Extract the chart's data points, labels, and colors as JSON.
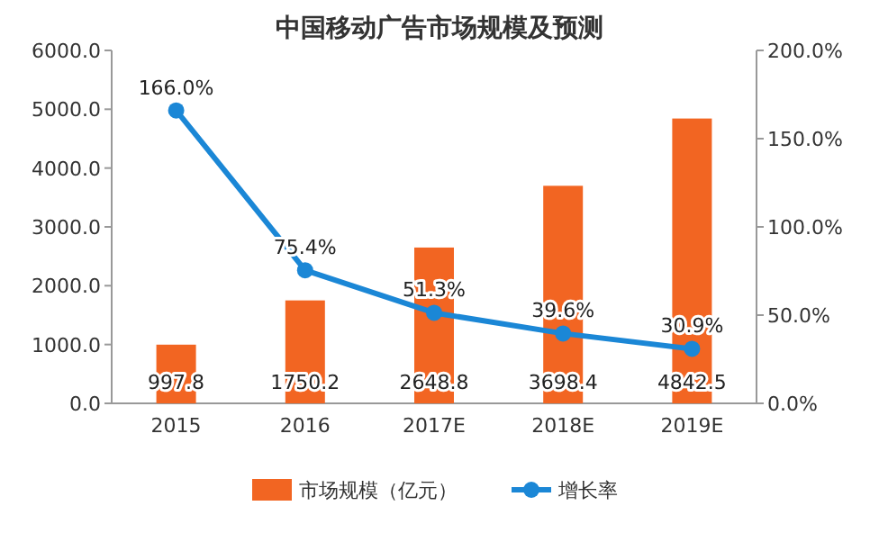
{
  "chart_data": {
    "type": "bar",
    "title": "中国移动广告市场规模及预测",
    "categories": [
      "2015",
      "2016",
      "2017E",
      "2018E",
      "2019E"
    ],
    "series": [
      {
        "name": "市场规模（亿元）",
        "color": "#f26522",
        "values": [
          997.8,
          1750.2,
          2648.8,
          3698.4,
          4842.5
        ],
        "value_labels": [
          "997.8",
          "1750.2",
          "2648.8",
          "3698.4",
          "4842.5"
        ]
      },
      {
        "name": "增长率",
        "type": "line",
        "axis": "y2",
        "color": "#1b87d6",
        "values": [
          166.0,
          75.4,
          51.3,
          39.6,
          30.9
        ],
        "value_labels": [
          "166.0%",
          "75.4%",
          "51.3%",
          "39.6%",
          "30.9%"
        ]
      }
    ],
    "ylim": [
      0,
      6000
    ],
    "yticks": [
      {
        "value": 0,
        "label": "0.0"
      },
      {
        "value": 1000,
        "label": "1000.0"
      },
      {
        "value": 2000,
        "label": "2000.0"
      },
      {
        "value": 3000,
        "label": "3000.0"
      },
      {
        "value": 4000,
        "label": "4000.0"
      },
      {
        "value": 5000,
        "label": "5000.0"
      },
      {
        "value": 6000,
        "label": "6000.0"
      }
    ],
    "y2lim": [
      0,
      200
    ],
    "y2ticks": [
      {
        "value": 0,
        "label": "0.0%"
      },
      {
        "value": 50,
        "label": "50.0%"
      },
      {
        "value": 100,
        "label": "100.0%"
      },
      {
        "value": 150,
        "label": "150.0%"
      },
      {
        "value": 200,
        "label": "200.0%"
      }
    ],
    "marker": "circle",
    "line_style": "solid",
    "legend": "bottom",
    "grid": false
  }
}
